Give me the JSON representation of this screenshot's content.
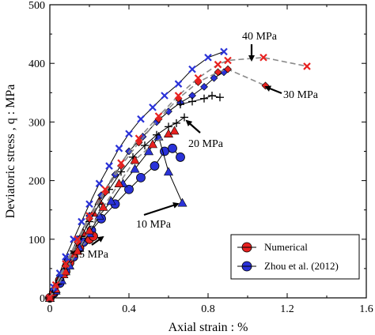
{
  "chart_data": {
    "type": "scatter",
    "xlabel": "Axial strain : %",
    "ylabel": "Deviatoric stress , q : MPa",
    "xlim": [
      0,
      1.6
    ],
    "ylim": [
      0,
      500
    ],
    "xticks": [
      0,
      0.4,
      0.8,
      1.2,
      1.6
    ],
    "xtick_labels": [
      "0",
      "0.4",
      "0.8",
      "1.2",
      "1.6"
    ],
    "yticks": [
      0,
      100,
      200,
      300,
      400,
      500
    ],
    "ytick_labels": [
      "0",
      "100",
      "200",
      "300",
      "400",
      "500"
    ],
    "grid": false,
    "legend_position": "bottom-right",
    "legend": [
      {
        "label": "Numerical",
        "color": "#e8211f",
        "marker": "circle"
      },
      {
        "label": "Zhou et al. (2012)",
        "color": "#2a32d8",
        "marker": "circle"
      }
    ],
    "series": [
      {
        "group": "5 MPa",
        "source": "experimental",
        "marker": "circle",
        "color": "#2a32d8",
        "x": [
          0.0,
          0.02,
          0.05,
          0.08,
          0.12,
          0.17,
          0.21,
          0.26,
          0.33,
          0.4,
          0.46,
          0.53,
          0.58,
          0.62,
          0.66
        ],
        "y": [
          0,
          8,
          25,
          45,
          70,
          95,
          115,
          135,
          160,
          185,
          205,
          225,
          250,
          255,
          240
        ]
      },
      {
        "group": "5 MPa",
        "source": "numerical",
        "marker": "circle",
        "color": "#e8211f",
        "x": [
          0.0,
          0.02,
          0.05,
          0.1,
          0.15,
          0.2,
          0.22
        ],
        "y": [
          0,
          10,
          30,
          60,
          85,
          100,
          105
        ]
      },
      {
        "group": "10 MPa",
        "source": "experimental",
        "marker": "triangle",
        "color": "#2a32d8",
        "x": [
          0.0,
          0.03,
          0.06,
          0.1,
          0.15,
          0.2,
          0.25,
          0.31,
          0.37,
          0.43,
          0.5,
          0.55,
          0.6,
          0.67
        ],
        "y": [
          0,
          12,
          30,
          55,
          85,
          110,
          140,
          165,
          195,
          220,
          250,
          275,
          215,
          162
        ]
      },
      {
        "group": "10 MPa",
        "source": "numerical",
        "marker": "triangle",
        "color": "#e8211f",
        "x": [
          0.0,
          0.03,
          0.07,
          0.12,
          0.17,
          0.22,
          0.25
        ],
        "y": [
          0,
          15,
          40,
          75,
          110,
          145,
          165
        ]
      },
      {
        "group": "20 MPa",
        "source": "experimental",
        "marker": "plus",
        "color": "#000000",
        "x": [
          0.0,
          0.02,
          0.05,
          0.08,
          0.12,
          0.16,
          0.2,
          0.25,
          0.3,
          0.36,
          0.42,
          0.48,
          0.54,
          0.6,
          0.64,
          0.68
        ],
        "y": [
          0,
          12,
          30,
          55,
          80,
          105,
          130,
          160,
          185,
          215,
          240,
          260,
          278,
          292,
          298,
          308
        ]
      },
      {
        "group": "20 MPa",
        "source": "numerical",
        "marker": "triangle",
        "color": "#e8211f",
        "x": [
          0.0,
          0.03,
          0.08,
          0.14,
          0.2,
          0.27,
          0.35,
          0.43,
          0.52,
          0.6,
          0.63
        ],
        "y": [
          0,
          15,
          45,
          80,
          115,
          155,
          195,
          235,
          262,
          280,
          285
        ]
      },
      {
        "group": "30 MPa",
        "source": "experimental",
        "marker": "diamond",
        "color": "#2a32d8",
        "x": [
          0.0,
          0.02,
          0.05,
          0.09,
          0.14,
          0.2,
          0.26,
          0.33,
          0.4,
          0.47,
          0.54,
          0.6,
          0.66,
          0.72,
          0.78,
          0.83,
          0.88
        ],
        "y": [
          0,
          15,
          38,
          65,
          100,
          140,
          175,
          210,
          250,
          275,
          300,
          318,
          333,
          345,
          360,
          375,
          385
        ]
      },
      {
        "group": "30 MPa",
        "source": "numerical",
        "marker": "diamond",
        "color": "#e8211f",
        "x": [
          0.0,
          0.03,
          0.08,
          0.14,
          0.2,
          0.28,
          0.36,
          0.45,
          0.55,
          0.65,
          0.75,
          0.85,
          0.9,
          1.09
        ],
        "y": [
          0,
          20,
          55,
          95,
          135,
          180,
          225,
          265,
          305,
          340,
          368,
          385,
          390,
          362
        ]
      },
      {
        "group": "40 MPa",
        "source": "experimental",
        "marker": "x",
        "color": "#2a32d8",
        "x": [
          0.0,
          0.02,
          0.05,
          0.08,
          0.12,
          0.16,
          0.2,
          0.25,
          0.3,
          0.35,
          0.4,
          0.46,
          0.52,
          0.58,
          0.65,
          0.72,
          0.8,
          0.88
        ],
        "y": [
          0,
          18,
          42,
          70,
          100,
          130,
          160,
          195,
          225,
          255,
          280,
          305,
          325,
          345,
          365,
          390,
          410,
          420
        ]
      },
      {
        "group": "40 MPa",
        "source": "numerical",
        "marker": "x",
        "color": "#e8211f",
        "x": [
          0.0,
          0.03,
          0.08,
          0.14,
          0.2,
          0.28,
          0.36,
          0.45,
          0.55,
          0.65,
          0.75,
          0.85,
          0.9,
          1.08,
          1.3
        ],
        "y": [
          0,
          22,
          58,
          100,
          140,
          185,
          230,
          272,
          310,
          345,
          375,
          398,
          405,
          410,
          395
        ]
      },
      {
        "group": "40 MPa",
        "source": "experimental-aux",
        "marker": "plus",
        "color": "#000000",
        "x": [
          0.66,
          0.72,
          0.78,
          0.82,
          0.86
        ],
        "y": [
          330,
          335,
          340,
          345,
          342
        ]
      }
    ],
    "annotations": [
      {
        "text": "40 MPa"
      },
      {
        "text": "30 MPa"
      },
      {
        "text": "20 MPa"
      },
      {
        "text": "10 MPa"
      },
      {
        "text": "5 MPa"
      }
    ]
  }
}
